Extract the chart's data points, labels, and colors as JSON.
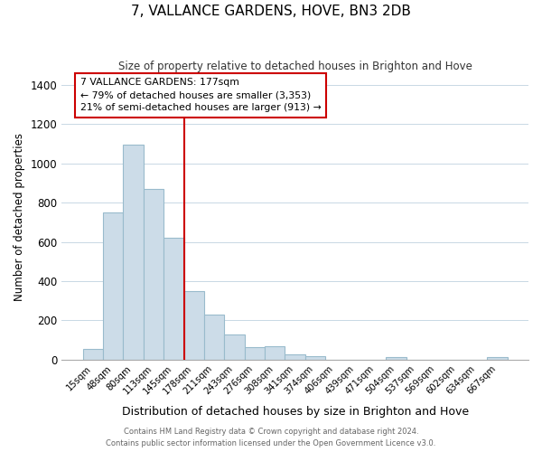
{
  "title": "7, VALLANCE GARDENS, HOVE, BN3 2DB",
  "subtitle": "Size of property relative to detached houses in Brighton and Hove",
  "xlabel": "Distribution of detached houses by size in Brighton and Hove",
  "ylabel": "Number of detached properties",
  "bar_labels": [
    "15sqm",
    "48sqm",
    "80sqm",
    "113sqm",
    "145sqm",
    "178sqm",
    "211sqm",
    "243sqm",
    "276sqm",
    "308sqm",
    "341sqm",
    "374sqm",
    "406sqm",
    "439sqm",
    "471sqm",
    "504sqm",
    "537sqm",
    "569sqm",
    "602sqm",
    "634sqm",
    "667sqm"
  ],
  "bar_values": [
    55,
    750,
    1095,
    870,
    620,
    350,
    230,
    130,
    65,
    70,
    25,
    20,
    0,
    0,
    0,
    15,
    0,
    0,
    0,
    0,
    15
  ],
  "bar_color": "#ccdce8",
  "bar_edge_color": "#99bbcc",
  "vline_color": "#cc0000",
  "annotation_text": "7 VALLANCE GARDENS: 177sqm\n← 79% of detached houses are smaller (3,353)\n21% of semi-detached houses are larger (913) →",
  "annotation_box_edge": "#cc0000",
  "ylim": [
    0,
    1450
  ],
  "yticks": [
    0,
    200,
    400,
    600,
    800,
    1000,
    1200,
    1400
  ],
  "footer_line1": "Contains HM Land Registry data © Crown copyright and database right 2024.",
  "footer_line2": "Contains public sector information licensed under the Open Government Licence v3.0.",
  "background_color": "#ffffff",
  "grid_color": "#c8d8e4"
}
